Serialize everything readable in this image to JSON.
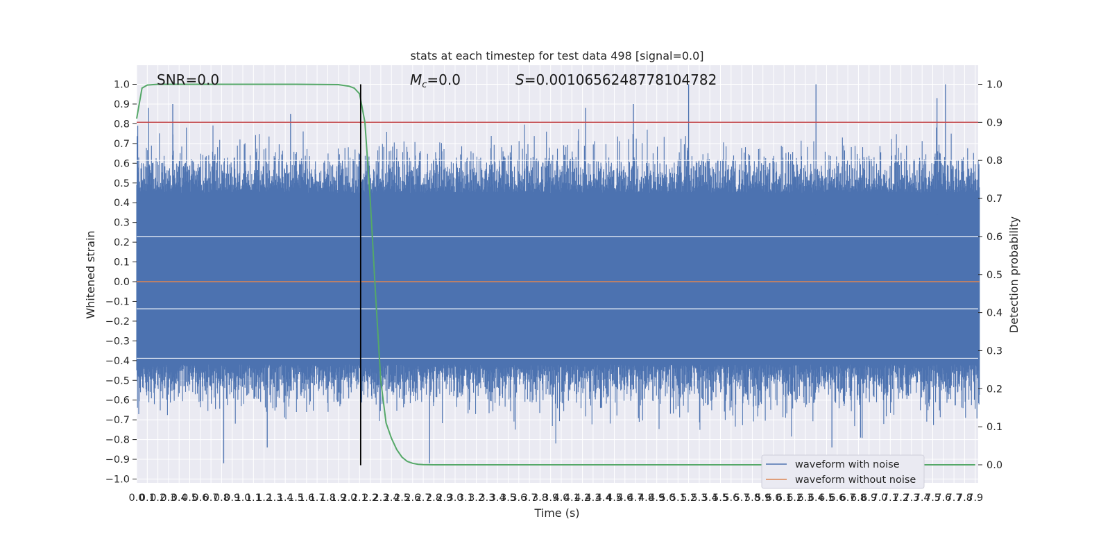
{
  "chart_data": {
    "type": "line",
    "title": "stats at each timestep for test data 498 [signal=0.0]",
    "xlabel": "Time (s)",
    "ylabel": "Whitened strain",
    "y2label": "Detection probability",
    "xlim": [
      0.0,
      7.95
    ],
    "ylim": [
      -1.05,
      1.05
    ],
    "y2lim": [
      -0.05,
      1.05
    ],
    "xticks": [
      "0.0",
      "0.1",
      "0.2",
      "0.3",
      "0.4",
      "0.5",
      "0.6",
      "0.7",
      "0.8",
      "0.9",
      "1.0",
      "1.1",
      "1.2",
      "1.3",
      "1.4",
      "1.5",
      "1.6",
      "1.7",
      "1.8",
      "1.9",
      "2.0",
      "2.1",
      "2.2",
      "2.3",
      "2.4",
      "2.5",
      "2.6",
      "2.7",
      "2.8",
      "2.9",
      "3.0",
      "3.1",
      "3.2",
      "3.3",
      "3.4",
      "3.5",
      "3.6",
      "3.7",
      "3.8",
      "3.9",
      "4.0",
      "4.1",
      "4.2",
      "4.3",
      "4.4",
      "4.5",
      "4.6",
      "4.7",
      "4.8",
      "4.9",
      "5.0",
      "5.1",
      "5.2",
      "5.3",
      "5.4",
      "5.5",
      "5.6",
      "5.7",
      "5.8",
      "5.9",
      "6.0",
      "6.1",
      "6.2",
      "6.3",
      "6.4",
      "6.5",
      "6.6",
      "6.7",
      "6.8",
      "6.9",
      "7.0",
      "7.1",
      "7.2",
      "7.3",
      "7.4",
      "7.5",
      "7.6",
      "7.7",
      "7.8",
      "7.9"
    ],
    "yticks": [
      "1.0",
      "0.9",
      "0.8",
      "0.7",
      "0.6",
      "0.5",
      "0.4",
      "0.3",
      "0.2",
      "0.1",
      "0.0",
      "−0.1",
      "−0.2",
      "−0.3",
      "−0.4",
      "−0.5",
      "−0.6",
      "−0.7",
      "−0.8",
      "−0.9",
      "−1.0"
    ],
    "y2ticks": [
      "1.0",
      "0.9",
      "0.8",
      "0.7",
      "0.6",
      "0.5",
      "0.4",
      "0.3",
      "0.2",
      "0.1",
      "0.0"
    ],
    "annotations": {
      "snr": "SNR=0.0",
      "mc_symbol": "M",
      "mc_sub": "c",
      "mc_value": "=0.0",
      "s_symbol": "S",
      "s_value": "=0.0010656248778104782"
    },
    "noisy_waveform": {
      "name": "waveform with noise",
      "color": "#4c72b0",
      "envelope_upper": 0.45,
      "envelope_lower": -0.42,
      "peaks": [
        [
          0.01,
          0.79
        ],
        [
          0.11,
          0.88
        ],
        [
          0.34,
          0.9
        ],
        [
          1.45,
          0.85
        ],
        [
          4.23,
          0.88
        ],
        [
          4.68,
          0.9
        ],
        [
          5.2,
          1.0
        ],
        [
          6.4,
          1.0
        ],
        [
          7.54,
          0.93
        ],
        [
          7.62,
          1.0
        ],
        [
          0.82,
          -0.92
        ],
        [
          1.23,
          -0.84
        ],
        [
          2.76,
          -0.92
        ],
        [
          6.55,
          -0.84
        ],
        [
          6.82,
          -0.79
        ]
      ]
    },
    "clean_waveform": {
      "name": "waveform without noise",
      "color": "#dd8452",
      "values": [
        0.0,
        0.0
      ]
    },
    "detection_probability": {
      "color": "#55a868",
      "x": [
        0.0,
        0.05,
        0.1,
        0.2,
        0.5,
        1.0,
        1.5,
        1.9,
        2.0,
        2.05,
        2.1,
        2.15,
        2.2,
        2.25,
        2.3,
        2.35,
        2.4,
        2.45,
        2.5,
        2.55,
        2.6,
        2.65,
        2.7,
        2.8,
        3.0,
        4.0,
        5.0,
        6.0,
        7.0,
        7.9
      ],
      "y": [
        0.91,
        0.99,
        0.998,
        1.0,
        1.0,
        1.0,
        1.0,
        0.999,
        0.995,
        0.99,
        0.975,
        0.9,
        0.7,
        0.45,
        0.22,
        0.11,
        0.07,
        0.04,
        0.02,
        0.009,
        0.004,
        0.0015,
        0.0005,
        0.0,
        0.0,
        0.0,
        0.0,
        0.0,
        0.0,
        0.0
      ]
    },
    "threshold": {
      "value": 0.9,
      "axis": "right",
      "color": "#c44e52"
    },
    "vline": {
      "x": 2.11,
      "ymin": -0.93,
      "ymax": 1.0,
      "color": "#000000"
    },
    "legend": {
      "placement": "lower right",
      "entries": [
        "waveform with noise",
        "waveform without noise"
      ]
    },
    "grid": true,
    "background_color": "#eaeaf2"
  }
}
